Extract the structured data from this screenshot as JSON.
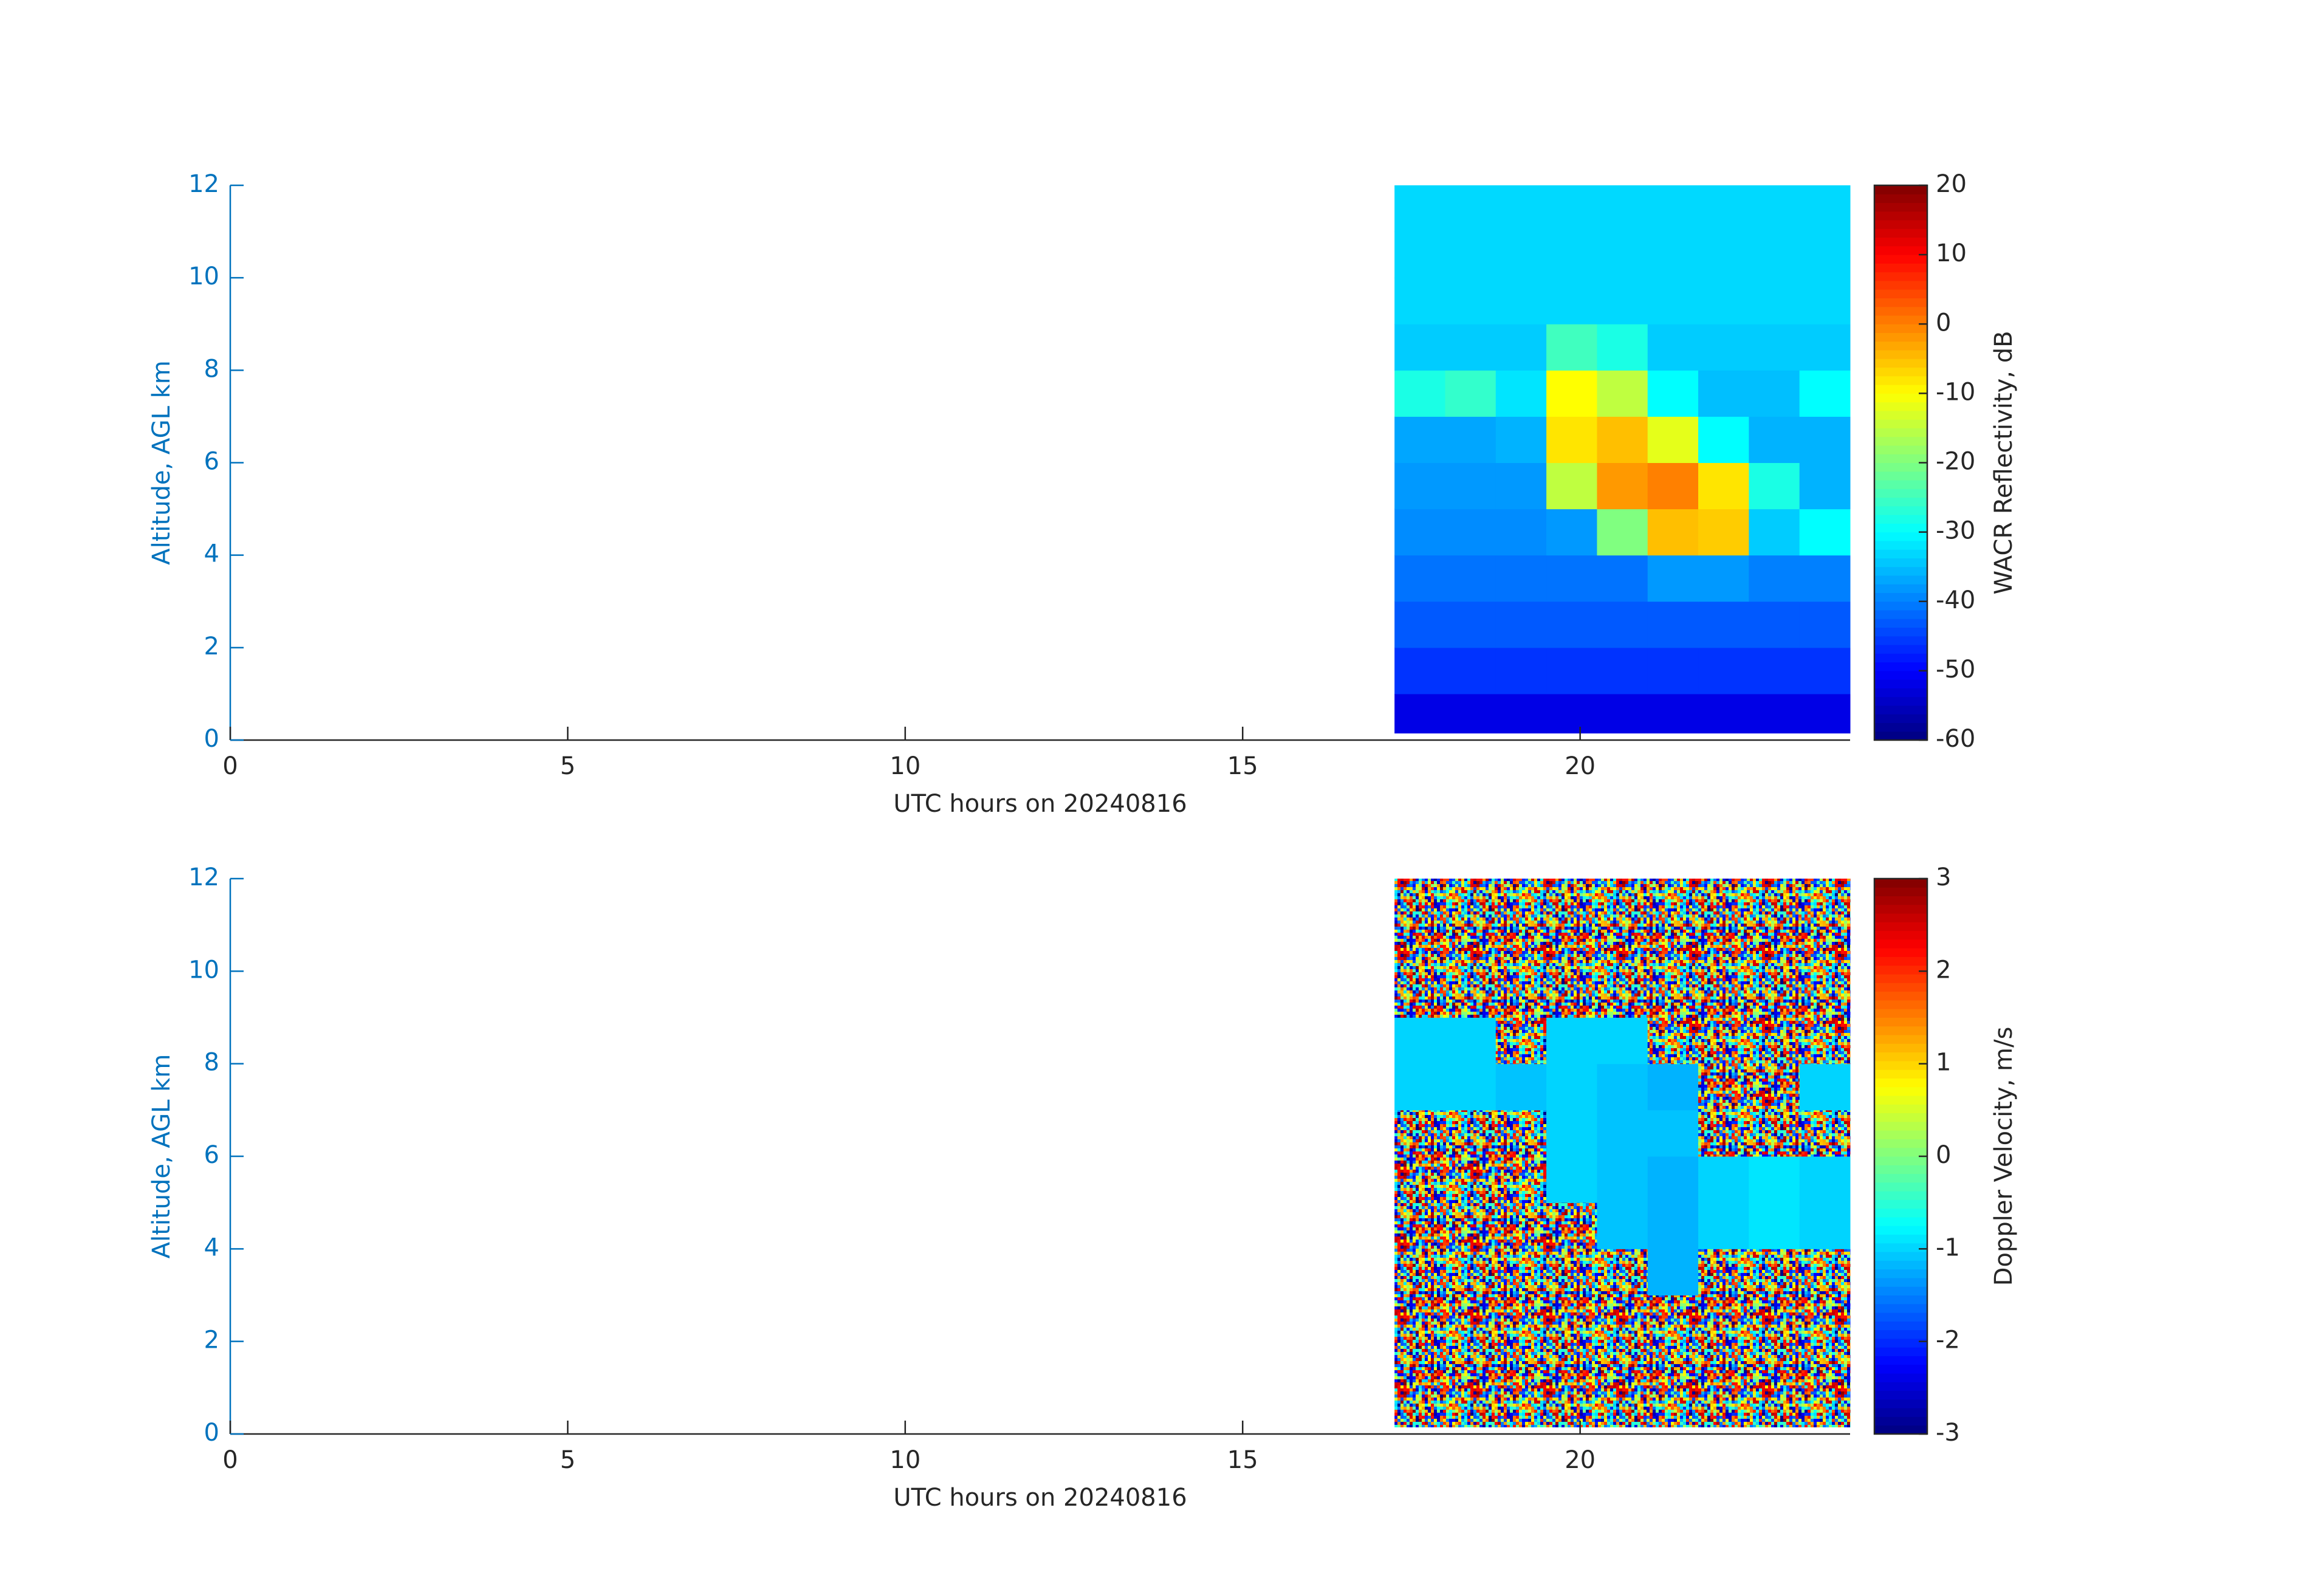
{
  "chart_data": [
    {
      "type": "heatmap",
      "xlabel": "UTC hours on 20240816",
      "ylabel": "Altitude, AGL km",
      "xlim": [
        0,
        24
      ],
      "ylim": [
        0,
        12
      ],
      "xticks": [
        0,
        5,
        10,
        15,
        20
      ],
      "yticks": [
        0,
        2,
        4,
        6,
        8,
        10,
        12
      ],
      "colormap": "jet",
      "colorbar_label": "WACR Reflectivity, dB",
      "clim": [
        -60,
        20
      ],
      "cticks": [
        -60,
        -50,
        -40,
        -30,
        -20,
        -10,
        0,
        10,
        20
      ],
      "x": [
        17.25,
        18,
        18.75,
        19.5,
        20.25,
        21,
        21.75,
        22.5,
        23.25,
        24
      ],
      "y": [
        0.15,
        1,
        2,
        3,
        4,
        5,
        6,
        7,
        8,
        9,
        10,
        11,
        12
      ],
      "values": [
        [
          -52,
          -52,
          -52,
          -52,
          -52,
          -52,
          -52,
          -52,
          -52
        ],
        [
          -46,
          -46,
          -46,
          -46,
          -46,
          -46,
          -46,
          -46,
          -46
        ],
        [
          -43,
          -43,
          -43,
          -43,
          -43,
          -43,
          -43,
          -43,
          -43
        ],
        [
          -41,
          -41,
          -41,
          -41,
          -41,
          -38,
          -38,
          -40,
          -40
        ],
        [
          -39,
          -39,
          -39,
          -38,
          -20,
          -5,
          -6,
          -34,
          -30
        ],
        [
          -38,
          -38,
          -38,
          -15,
          -2,
          0,
          -8,
          -28,
          -36
        ],
        [
          -37,
          -37,
          -36,
          -8,
          -5,
          -12,
          -30,
          -36,
          -36
        ],
        [
          -28,
          -26,
          -32,
          -10,
          -15,
          -30,
          -35,
          -35,
          -30
        ],
        [
          -34,
          -34,
          -34,
          -25,
          -28,
          -34,
          -34,
          -34,
          -34
        ],
        [
          -33,
          -33,
          -33,
          -33,
          -33,
          -33,
          -33,
          -33,
          -33
        ],
        [
          -33,
          -33,
          -33,
          -33,
          -33,
          -33,
          -33,
          -33,
          -33
        ],
        [
          -33,
          -33,
          -33,
          -33,
          -33,
          -33,
          -33,
          -33,
          -33
        ]
      ]
    },
    {
      "type": "heatmap",
      "xlabel": "UTC hours on 20240816",
      "ylabel": "Altitude, AGL km",
      "xlim": [
        0,
        24
      ],
      "ylim": [
        0,
        12
      ],
      "xticks": [
        0,
        5,
        10,
        15,
        20
      ],
      "yticks": [
        0,
        2,
        4,
        6,
        8,
        10,
        12
      ],
      "colormap": "jet",
      "colorbar_label": "Doppler Velocity, m/s",
      "clim": [
        -3,
        3
      ],
      "cticks": [
        -3,
        -2,
        -1,
        0,
        1,
        2,
        3
      ],
      "x": [
        17.25,
        18,
        18.75,
        19.5,
        20.25,
        21,
        21.75,
        22.5,
        23.25,
        24
      ],
      "y": [
        0.15,
        1,
        2,
        3,
        4,
        5,
        6,
        7,
        8,
        9,
        10,
        11,
        12
      ],
      "values": [
        [
          null,
          null,
          null,
          null,
          null,
          null,
          null,
          null,
          null
        ],
        [
          null,
          null,
          null,
          null,
          null,
          null,
          null,
          null,
          null
        ],
        [
          null,
          null,
          null,
          null,
          null,
          null,
          null,
          null,
          null
        ],
        [
          null,
          null,
          null,
          null,
          null,
          -1.2,
          null,
          null,
          null
        ],
        [
          null,
          null,
          null,
          null,
          -1.1,
          -1.2,
          -1.0,
          -0.9,
          -1.0
        ],
        [
          null,
          null,
          null,
          -1.0,
          -1.1,
          -1.2,
          -1.0,
          -0.9,
          -1.0
        ],
        [
          null,
          null,
          null,
          -1.0,
          -1.1,
          -1.1,
          null,
          null,
          null
        ],
        [
          -1.0,
          -1.0,
          -1.1,
          -1.0,
          -1.1,
          -1.2,
          null,
          null,
          -1.0
        ],
        [
          -1.0,
          -1.0,
          null,
          -1.0,
          -1.0,
          null,
          null,
          null,
          null
        ],
        [
          null,
          null,
          null,
          null,
          null,
          null,
          null,
          null,
          null
        ],
        [
          null,
          null,
          null,
          null,
          null,
          null,
          null,
          null,
          null
        ],
        [
          null,
          null,
          null,
          null,
          null,
          null,
          null,
          null,
          null
        ]
      ]
    }
  ]
}
